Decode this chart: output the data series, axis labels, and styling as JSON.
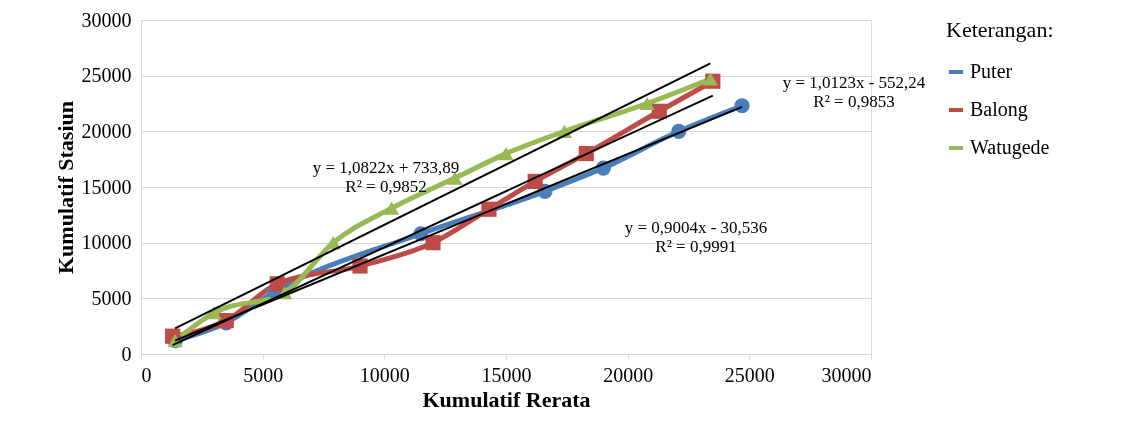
{
  "chart_data": {
    "type": "line",
    "xlabel": "Kumulatif Rerata",
    "ylabel": "Kumulatif Stasiun",
    "legend_title": "Keterangan:",
    "xlim": [
      0,
      30000
    ],
    "ylim": [
      0,
      30000
    ],
    "xticks": [
      0,
      5000,
      10000,
      15000,
      20000,
      25000,
      30000
    ],
    "yticks": [
      0,
      5000,
      10000,
      15000,
      20000,
      25000,
      30000
    ],
    "grid": "y",
    "legend": "right",
    "line_style": "solid",
    "series": [
      {
        "name": "Puter",
        "color": "#4a7ebb",
        "marker": "circle",
        "x": [
          1400,
          3500,
          5500,
          11500,
          16600,
          19000,
          22100,
          24700
        ],
        "values": [
          1200,
          2800,
          5600,
          10800,
          14600,
          16700,
          20000,
          22300
        ]
      },
      {
        "name": "Balong",
        "color": "#be4b48",
        "marker": "square",
        "x": [
          1300,
          3500,
          5600,
          9000,
          12000,
          14300,
          16200,
          18300,
          21300,
          23500
        ],
        "values": [
          1600,
          3000,
          6300,
          7900,
          10000,
          13000,
          15500,
          18000,
          21800,
          24500
        ]
      },
      {
        "name": "Watugede",
        "color": "#98b954",
        "marker": "triangle",
        "x": [
          1400,
          3000,
          5900,
          7900,
          10300,
          12900,
          15000,
          17400,
          20800,
          23400
        ],
        "values": [
          1200,
          3700,
          5500,
          10000,
          13100,
          15800,
          18000,
          20000,
          22500,
          24700
        ]
      },
      {
        "color": "#000000",
        "x": [
          1400,
          24700
        ],
        "values": [
          1200,
          22200
        ]
      },
      {
        "color": "#000000",
        "x": [
          1300,
          23500
        ],
        "values": [
          800,
          23200
        ]
      },
      {
        "color": "#000000",
        "x": [
          1400,
          23400
        ],
        "values": [
          2300,
          26100
        ]
      }
    ],
    "annotations": [
      "y = 1,0822x + 733,89\nR² = 0,9852",
      "y = 0,9004x - 30,536\nR² = 0,9991",
      "y = 1,0123x - 552,24\nR² = 0,9853"
    ]
  }
}
